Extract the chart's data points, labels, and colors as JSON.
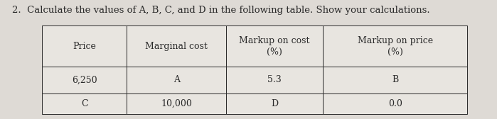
{
  "title": "2.  Calculate the values of A, B, C, and D in the following table. Show your calculations.",
  "col_headers": [
    "Price",
    "Marginal cost",
    "Markup on cost\n(%)",
    "Markup on price\n(%)"
  ],
  "rows": [
    [
      "6,250",
      "A",
      "5.3",
      "B"
    ],
    [
      "C",
      "10,000",
      "D",
      "0.0"
    ]
  ],
  "bg_color": "#dedad5",
  "text_color": "#2a2a2a",
  "table_bg": "#e8e5e0",
  "title_fontsize": 9.5,
  "cell_fontsize": 9.0,
  "header_fontsize": 9.0,
  "col_starts": [
    0.085,
    0.255,
    0.455,
    0.65
  ],
  "col_ends": [
    0.255,
    0.455,
    0.65,
    0.94
  ],
  "row_tops": [
    0.785,
    0.44,
    0.215
  ],
  "row_bottoms": [
    0.44,
    0.215,
    0.04
  ]
}
